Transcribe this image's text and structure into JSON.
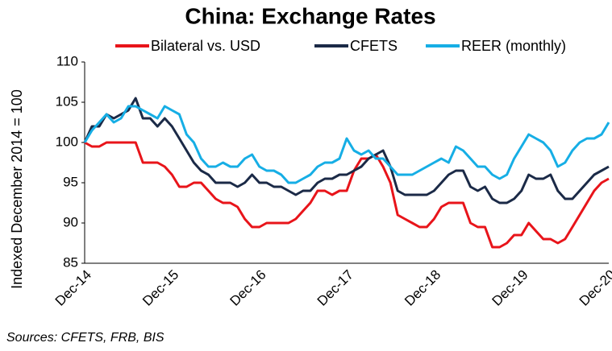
{
  "chart_data": {
    "type": "line",
    "title": "China: Exchange Rates",
    "y_label": "Indexed December 2014 = 100",
    "source": "Sources: CFETS, FRB, BIS",
    "categories": [
      "Dec-14",
      null,
      null,
      null,
      null,
      null,
      null,
      null,
      null,
      null,
      null,
      null,
      "Dec-15",
      null,
      null,
      null,
      null,
      null,
      null,
      null,
      null,
      null,
      null,
      null,
      "Dec-16",
      null,
      null,
      null,
      null,
      null,
      null,
      null,
      null,
      null,
      null,
      null,
      "Dec-17",
      null,
      null,
      null,
      null,
      null,
      null,
      null,
      null,
      null,
      null,
      null,
      "Dec-18",
      null,
      null,
      null,
      null,
      null,
      null,
      null,
      null,
      null,
      null,
      null,
      "Dec-19",
      null,
      null,
      null,
      null,
      null,
      null,
      null,
      null,
      null,
      null,
      null,
      "Dec-20"
    ],
    "series": [
      {
        "name": "Bilateral vs. USD",
        "color": "#e8141a",
        "values": [
          100,
          99.5,
          99.5,
          100,
          100,
          100,
          100,
          100,
          97.5,
          97.5,
          97.5,
          97,
          96,
          94.5,
          94.5,
          95,
          95,
          94,
          93,
          92.5,
          92.5,
          92,
          90.5,
          89.5,
          89.5,
          90,
          90,
          90,
          90,
          90.5,
          91.5,
          92.5,
          94,
          94,
          93.5,
          94,
          94,
          96.5,
          98,
          98,
          98.5,
          97,
          95,
          91,
          90.5,
          90,
          89.5,
          89.5,
          90.5,
          92,
          92.5,
          92.5,
          92.5,
          90,
          89.5,
          89.5,
          87,
          87,
          87.5,
          88.5,
          88.5,
          90,
          89,
          88,
          88,
          87.5,
          88,
          89.5,
          91,
          92.5,
          94,
          95,
          95.5
        ]
      },
      {
        "name": "CFETS",
        "color": "#1b2a47",
        "values": [
          100,
          102,
          102,
          103.5,
          103,
          103.5,
          104,
          105.5,
          103,
          103,
          102,
          103,
          102,
          100.5,
          99,
          97.5,
          96.5,
          96,
          95,
          95,
          95,
          94.5,
          95,
          96,
          95,
          95,
          94.5,
          94.5,
          94,
          93.5,
          94,
          94,
          95,
          95.5,
          95.5,
          96,
          96,
          96.5,
          97,
          98,
          98.5,
          99,
          97,
          94,
          93.5,
          93.5,
          93.5,
          93.5,
          94,
          95,
          96,
          96.5,
          96.5,
          94.5,
          94,
          94.5,
          93,
          92.5,
          92.5,
          93,
          94,
          96,
          95.5,
          95.5,
          96,
          94,
          93,
          93,
          94,
          95,
          96,
          96.5,
          97
        ]
      },
      {
        "name": "REER (monthly)",
        "color": "#16aee5",
        "values": [
          100,
          101.5,
          102.5,
          103.5,
          102.5,
          103,
          104.5,
          104.5,
          104,
          103.5,
          103,
          104.5,
          104,
          103.5,
          101,
          100,
          98,
          97,
          97,
          97.5,
          97,
          97,
          98,
          98.5,
          97,
          96.5,
          96.5,
          96,
          95,
          95,
          95.5,
          96,
          97,
          97.5,
          97.5,
          98,
          100.5,
          99,
          98.5,
          99,
          98,
          98,
          97,
          96,
          96,
          96,
          96.5,
          97,
          97.5,
          98,
          97.5,
          99.5,
          99,
          98,
          97,
          97,
          96,
          95.5,
          96,
          98,
          99.5,
          101,
          100.5,
          100,
          99,
          97,
          97.5,
          99,
          100,
          100.5,
          100.5,
          101,
          102.5
        ]
      }
    ],
    "ylim": [
      85,
      110
    ],
    "yticks": [
      85,
      90,
      95,
      100,
      105,
      110
    ],
    "grid": false
  }
}
